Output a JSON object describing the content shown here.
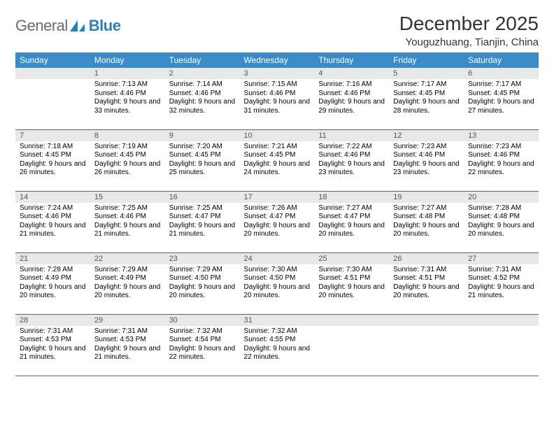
{
  "brand": {
    "part1": "General",
    "part2": "Blue"
  },
  "title": "December 2025",
  "location": "Youguzhuang, Tianjin, China",
  "colors": {
    "header_bg": "#3b8bc9",
    "header_text": "#ffffff",
    "daynum_bg": "#e8e8e8",
    "row_divider": "#2f6fa3",
    "logo_gray": "#6b6b6b",
    "logo_blue": "#2a7fbf"
  },
  "dow": [
    "Sunday",
    "Monday",
    "Tuesday",
    "Wednesday",
    "Thursday",
    "Friday",
    "Saturday"
  ],
  "weeks": [
    [
      {
        "n": "",
        "sr": "",
        "ss": "",
        "dl": ""
      },
      {
        "n": "1",
        "sr": "7:13 AM",
        "ss": "4:46 PM",
        "dl": "9 hours and 33 minutes."
      },
      {
        "n": "2",
        "sr": "7:14 AM",
        "ss": "4:46 PM",
        "dl": "9 hours and 32 minutes."
      },
      {
        "n": "3",
        "sr": "7:15 AM",
        "ss": "4:46 PM",
        "dl": "9 hours and 31 minutes."
      },
      {
        "n": "4",
        "sr": "7:16 AM",
        "ss": "4:46 PM",
        "dl": "9 hours and 29 minutes."
      },
      {
        "n": "5",
        "sr": "7:17 AM",
        "ss": "4:45 PM",
        "dl": "9 hours and 28 minutes."
      },
      {
        "n": "6",
        "sr": "7:17 AM",
        "ss": "4:45 PM",
        "dl": "9 hours and 27 minutes."
      }
    ],
    [
      {
        "n": "7",
        "sr": "7:18 AM",
        "ss": "4:45 PM",
        "dl": "9 hours and 26 minutes."
      },
      {
        "n": "8",
        "sr": "7:19 AM",
        "ss": "4:45 PM",
        "dl": "9 hours and 26 minutes."
      },
      {
        "n": "9",
        "sr": "7:20 AM",
        "ss": "4:45 PM",
        "dl": "9 hours and 25 minutes."
      },
      {
        "n": "10",
        "sr": "7:21 AM",
        "ss": "4:45 PM",
        "dl": "9 hours and 24 minutes."
      },
      {
        "n": "11",
        "sr": "7:22 AM",
        "ss": "4:46 PM",
        "dl": "9 hours and 23 minutes."
      },
      {
        "n": "12",
        "sr": "7:23 AM",
        "ss": "4:46 PM",
        "dl": "9 hours and 23 minutes."
      },
      {
        "n": "13",
        "sr": "7:23 AM",
        "ss": "4:46 PM",
        "dl": "9 hours and 22 minutes."
      }
    ],
    [
      {
        "n": "14",
        "sr": "7:24 AM",
        "ss": "4:46 PM",
        "dl": "9 hours and 21 minutes."
      },
      {
        "n": "15",
        "sr": "7:25 AM",
        "ss": "4:46 PM",
        "dl": "9 hours and 21 minutes."
      },
      {
        "n": "16",
        "sr": "7:25 AM",
        "ss": "4:47 PM",
        "dl": "9 hours and 21 minutes."
      },
      {
        "n": "17",
        "sr": "7:26 AM",
        "ss": "4:47 PM",
        "dl": "9 hours and 20 minutes."
      },
      {
        "n": "18",
        "sr": "7:27 AM",
        "ss": "4:47 PM",
        "dl": "9 hours and 20 minutes."
      },
      {
        "n": "19",
        "sr": "7:27 AM",
        "ss": "4:48 PM",
        "dl": "9 hours and 20 minutes."
      },
      {
        "n": "20",
        "sr": "7:28 AM",
        "ss": "4:48 PM",
        "dl": "9 hours and 20 minutes."
      }
    ],
    [
      {
        "n": "21",
        "sr": "7:28 AM",
        "ss": "4:49 PM",
        "dl": "9 hours and 20 minutes."
      },
      {
        "n": "22",
        "sr": "7:29 AM",
        "ss": "4:49 PM",
        "dl": "9 hours and 20 minutes."
      },
      {
        "n": "23",
        "sr": "7:29 AM",
        "ss": "4:50 PM",
        "dl": "9 hours and 20 minutes."
      },
      {
        "n": "24",
        "sr": "7:30 AM",
        "ss": "4:50 PM",
        "dl": "9 hours and 20 minutes."
      },
      {
        "n": "25",
        "sr": "7:30 AM",
        "ss": "4:51 PM",
        "dl": "9 hours and 20 minutes."
      },
      {
        "n": "26",
        "sr": "7:31 AM",
        "ss": "4:51 PM",
        "dl": "9 hours and 20 minutes."
      },
      {
        "n": "27",
        "sr": "7:31 AM",
        "ss": "4:52 PM",
        "dl": "9 hours and 21 minutes."
      }
    ],
    [
      {
        "n": "28",
        "sr": "7:31 AM",
        "ss": "4:53 PM",
        "dl": "9 hours and 21 minutes."
      },
      {
        "n": "29",
        "sr": "7:31 AM",
        "ss": "4:53 PM",
        "dl": "9 hours and 21 minutes."
      },
      {
        "n": "30",
        "sr": "7:32 AM",
        "ss": "4:54 PM",
        "dl": "9 hours and 22 minutes."
      },
      {
        "n": "31",
        "sr": "7:32 AM",
        "ss": "4:55 PM",
        "dl": "9 hours and 22 minutes."
      },
      {
        "n": "",
        "sr": "",
        "ss": "",
        "dl": ""
      },
      {
        "n": "",
        "sr": "",
        "ss": "",
        "dl": ""
      },
      {
        "n": "",
        "sr": "",
        "ss": "",
        "dl": ""
      }
    ]
  ],
  "labels": {
    "sunrise": "Sunrise:",
    "sunset": "Sunset:",
    "daylight": "Daylight:"
  }
}
